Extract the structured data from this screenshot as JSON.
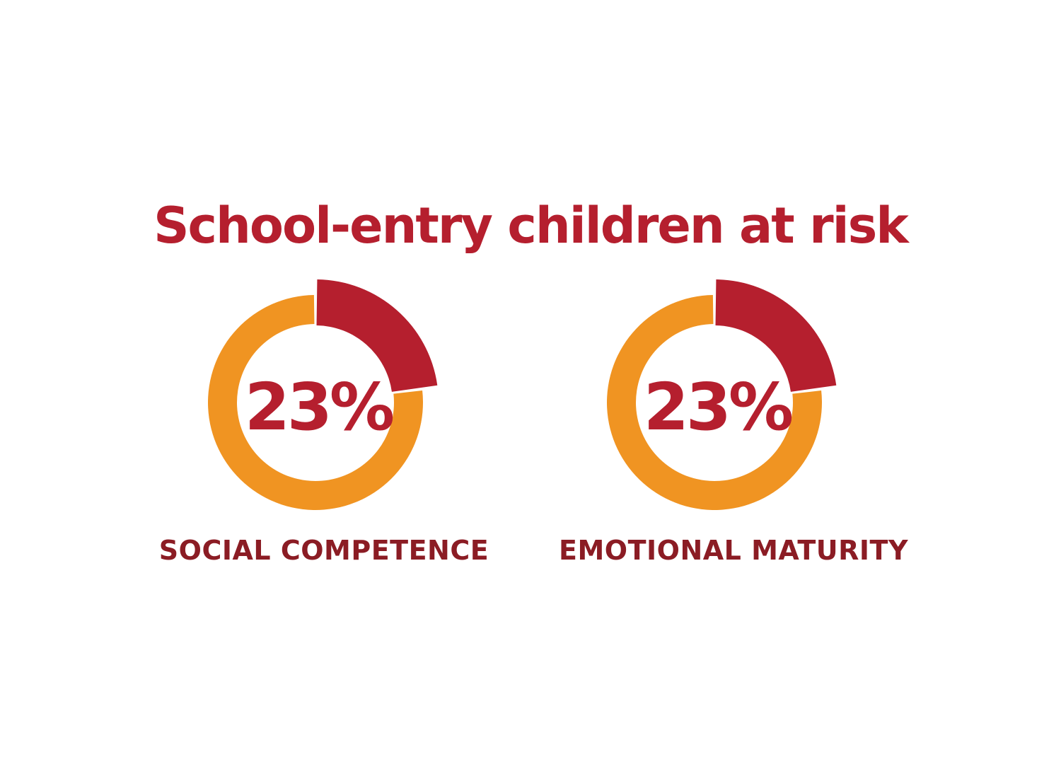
{
  "chart_data": [
    {
      "type": "pie",
      "title": "School-entry children at risk",
      "label": "SOCIAL COMPETENCE",
      "center_text": "23%",
      "values": [
        23,
        77
      ],
      "colors": [
        "#B51F2E",
        "#F09422"
      ]
    },
    {
      "type": "pie",
      "title": "School-entry children at risk",
      "label": "EMOTIONAL MATURITY",
      "center_text": "23%",
      "values": [
        23,
        77
      ],
      "colors": [
        "#B51F2E",
        "#F09422"
      ]
    }
  ],
  "title": "School-entry children at risk",
  "colors": {
    "title": "#B51F2E",
    "label": "#8B1C24"
  }
}
